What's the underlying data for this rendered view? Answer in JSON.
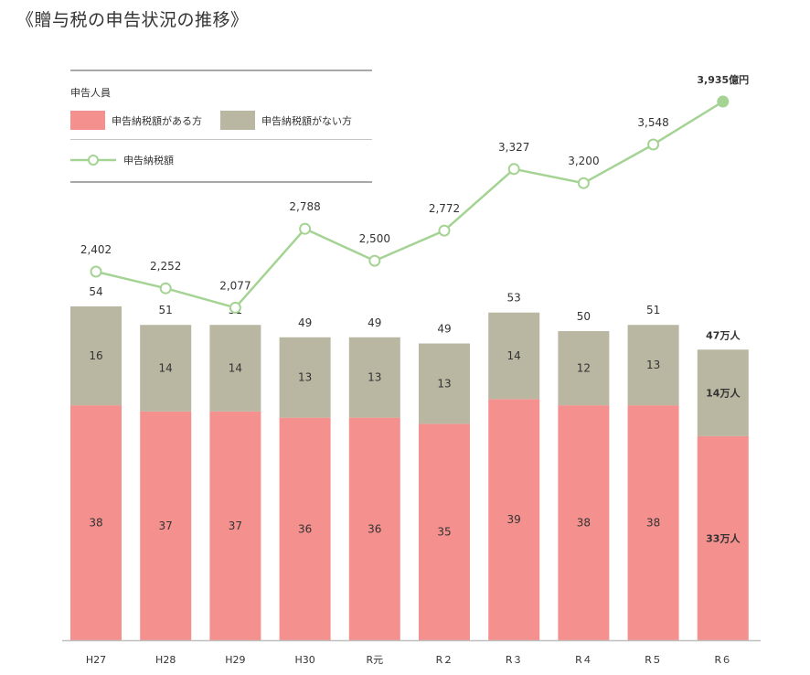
{
  "title": "《贈与税の申告状況の推移》",
  "legend": {
    "heading": "申告人員",
    "items": [
      {
        "label": "申告納税額がある方",
        "color": "#f4908e"
      },
      {
        "label": "申告納税額がない方",
        "color": "#b9b6a1"
      }
    ],
    "line_label": "申告納税額",
    "line_color": "#a4d393"
  },
  "chart_data": [
    {
      "type": "line",
      "series": [
        {
          "name": "申告納税額",
          "values": [
            2402,
            2252,
            2077,
            2788,
            2500,
            2772,
            3327,
            3200,
            3548,
            3935
          ]
        }
      ],
      "categories": [
        "H27",
        "H28",
        "H29",
        "H30",
        "R元",
        "R２",
        "R３",
        "R４",
        "R５",
        "R６"
      ],
      "value_labels": [
        "2,402",
        "2,252",
        "2,077",
        "2,788",
        "2,500",
        "2,772",
        "3,327",
        "3,200",
        "3,548",
        "3,935億円"
      ]
    },
    {
      "type": "bar",
      "stacked": true,
      "categories": [
        "H27",
        "H28",
        "H29",
        "H30",
        "R元",
        "R２",
        "R３",
        "R４",
        "R５",
        "R６"
      ],
      "series": [
        {
          "name": "申告納税額がある方",
          "values": [
            38,
            37,
            37,
            36,
            36,
            35,
            39,
            38,
            38,
            33
          ]
        },
        {
          "name": "申告納税額がない方",
          "values": [
            16,
            14,
            14,
            13,
            13,
            13,
            14,
            12,
            13,
            14
          ]
        }
      ],
      "totals": [
        54,
        51,
        51,
        49,
        49,
        49,
        53,
        50,
        51,
        47
      ],
      "last_labels": {
        "bottom": "33万人",
        "top": "14万人",
        "total": "47万人"
      }
    }
  ]
}
